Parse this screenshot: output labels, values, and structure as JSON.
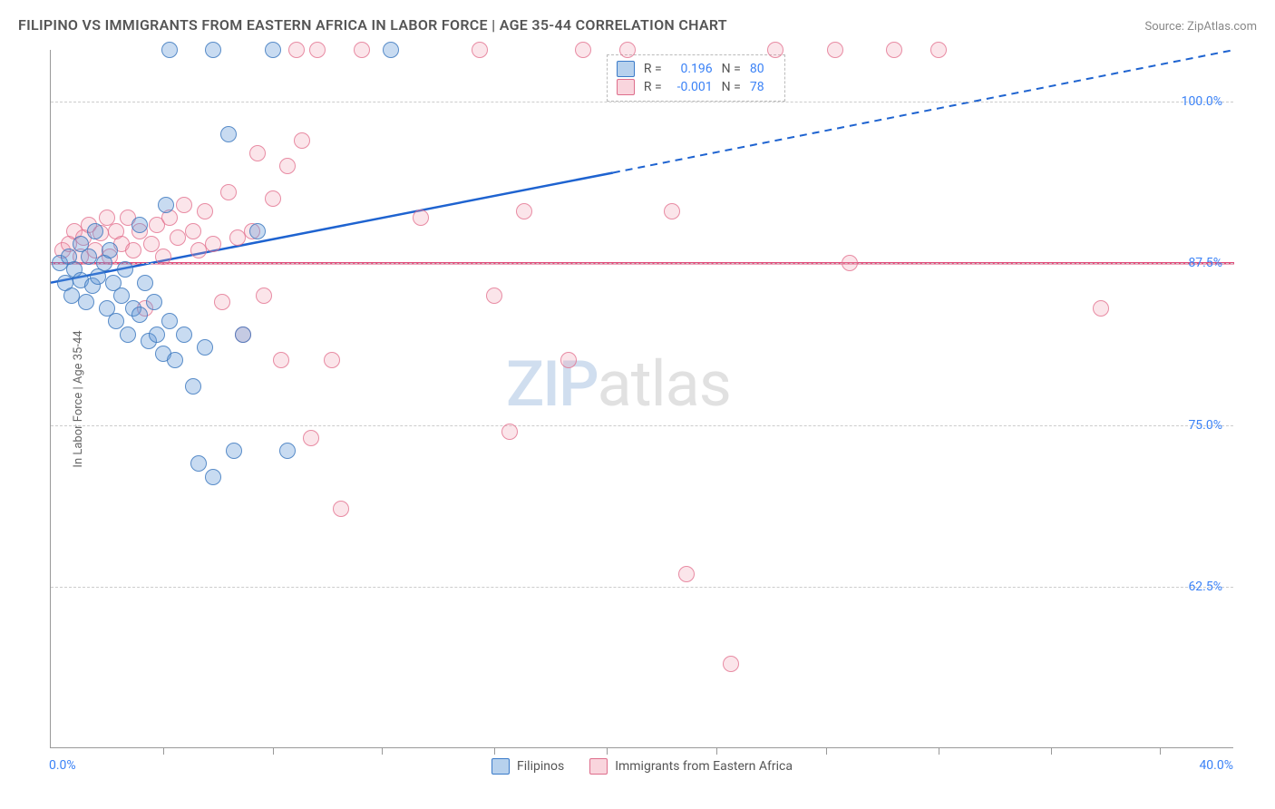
{
  "title": "FILIPINO VS IMMIGRANTS FROM EASTERN AFRICA IN LABOR FORCE | AGE 35-44 CORRELATION CHART",
  "source": "Source: ZipAtlas.com",
  "chart": {
    "type": "scatter",
    "y_axis_title": "In Labor Force | Age 35-44",
    "x_min": 0.0,
    "x_max": 40.0,
    "x_min_label": "0.0%",
    "x_max_label": "40.0%",
    "y_min": 50.0,
    "y_max": 104.0,
    "y_ticks": [
      62.5,
      75.0,
      87.5,
      100.0
    ],
    "y_tick_labels": [
      "62.5%",
      "75.0%",
      "87.5%",
      "100.0%"
    ],
    "x_tick_positions": [
      3.8,
      7.5,
      11.2,
      15.0,
      18.8,
      22.5,
      26.2,
      30.0,
      33.8,
      37.5
    ],
    "watermark_zip": "ZIP",
    "watermark_atlas": "atlas",
    "background_color": "#ffffff",
    "grid_color": "#cccccc"
  },
  "legend_top": {
    "rows": [
      {
        "r_label": "R =",
        "r_value": "0.196",
        "n_label": "N =",
        "n_value": "80"
      },
      {
        "r_label": "R =",
        "r_value": "-0.001",
        "n_label": "N =",
        "n_value": "78"
      }
    ]
  },
  "legend_bottom": {
    "series_a": "Filipinos",
    "series_b": "Immigrants from Eastern Africa"
  },
  "series": {
    "blue": {
      "color_fill": "rgba(96,153,214,0.35)",
      "color_stroke": "rgba(60,120,190,0.8)",
      "marker_size": 18,
      "trend_color": "#1e63d0",
      "trend_start": {
        "x": 0.0,
        "y": 86.0
      },
      "trend_solid_end": {
        "x": 19.0,
        "y": 94.5
      },
      "trend_dash_end": {
        "x": 40.0,
        "y": 104.0
      },
      "points": [
        {
          "x": 0.3,
          "y": 87.5
        },
        {
          "x": 0.5,
          "y": 86.0
        },
        {
          "x": 0.6,
          "y": 88.0
        },
        {
          "x": 0.7,
          "y": 85.0
        },
        {
          "x": 0.8,
          "y": 87.0
        },
        {
          "x": 1.0,
          "y": 86.2
        },
        {
          "x": 1.0,
          "y": 89.0
        },
        {
          "x": 1.2,
          "y": 84.5
        },
        {
          "x": 1.3,
          "y": 88.0
        },
        {
          "x": 1.4,
          "y": 85.8
        },
        {
          "x": 1.5,
          "y": 90.0
        },
        {
          "x": 1.6,
          "y": 86.5
        },
        {
          "x": 1.8,
          "y": 87.5
        },
        {
          "x": 1.9,
          "y": 84.0
        },
        {
          "x": 2.0,
          "y": 88.5
        },
        {
          "x": 2.1,
          "y": 86.0
        },
        {
          "x": 2.2,
          "y": 83.0
        },
        {
          "x": 2.4,
          "y": 85.0
        },
        {
          "x": 2.5,
          "y": 87.0
        },
        {
          "x": 2.6,
          "y": 82.0
        },
        {
          "x": 2.8,
          "y": 84.0
        },
        {
          "x": 3.0,
          "y": 83.5
        },
        {
          "x": 3.0,
          "y": 90.5
        },
        {
          "x": 3.2,
          "y": 86.0
        },
        {
          "x": 3.3,
          "y": 81.5
        },
        {
          "x": 3.5,
          "y": 84.5
        },
        {
          "x": 3.6,
          "y": 82.0
        },
        {
          "x": 3.8,
          "y": 80.5
        },
        {
          "x": 3.9,
          "y": 92.0
        },
        {
          "x": 4.0,
          "y": 83.0
        },
        {
          "x": 4.0,
          "y": 104.0
        },
        {
          "x": 4.2,
          "y": 80.0
        },
        {
          "x": 4.5,
          "y": 82.0
        },
        {
          "x": 4.8,
          "y": 78.0
        },
        {
          "x": 5.0,
          "y": 72.0
        },
        {
          "x": 5.2,
          "y": 81.0
        },
        {
          "x": 5.5,
          "y": 71.0
        },
        {
          "x": 5.5,
          "y": 104.0
        },
        {
          "x": 6.0,
          "y": 97.5
        },
        {
          "x": 6.2,
          "y": 73.0
        },
        {
          "x": 6.5,
          "y": 82.0
        },
        {
          "x": 7.0,
          "y": 90.0
        },
        {
          "x": 7.5,
          "y": 104.0
        },
        {
          "x": 8.0,
          "y": 73.0
        },
        {
          "x": 11.5,
          "y": 104.0
        }
      ]
    },
    "pink": {
      "color_fill": "rgba(240,150,170,0.25)",
      "color_stroke": "rgba(225,110,140,0.75)",
      "marker_size": 18,
      "trend_color": "#e14b7a",
      "trend_y": 87.5,
      "points": [
        {
          "x": 0.4,
          "y": 88.5
        },
        {
          "x": 0.6,
          "y": 89.0
        },
        {
          "x": 0.8,
          "y": 90.0
        },
        {
          "x": 1.0,
          "y": 88.0
        },
        {
          "x": 1.1,
          "y": 89.5
        },
        {
          "x": 1.3,
          "y": 90.5
        },
        {
          "x": 1.5,
          "y": 88.5
        },
        {
          "x": 1.7,
          "y": 89.8
        },
        {
          "x": 1.9,
          "y": 91.0
        },
        {
          "x": 2.0,
          "y": 88.0
        },
        {
          "x": 2.2,
          "y": 90.0
        },
        {
          "x": 2.4,
          "y": 89.0
        },
        {
          "x": 2.6,
          "y": 91.0
        },
        {
          "x": 2.8,
          "y": 88.5
        },
        {
          "x": 3.0,
          "y": 90.0
        },
        {
          "x": 3.2,
          "y": 84.0
        },
        {
          "x": 3.4,
          "y": 89.0
        },
        {
          "x": 3.6,
          "y": 90.5
        },
        {
          "x": 3.8,
          "y": 88.0
        },
        {
          "x": 4.0,
          "y": 91.0
        },
        {
          "x": 4.3,
          "y": 89.5
        },
        {
          "x": 4.5,
          "y": 92.0
        },
        {
          "x": 4.8,
          "y": 90.0
        },
        {
          "x": 5.0,
          "y": 88.5
        },
        {
          "x": 5.2,
          "y": 91.5
        },
        {
          "x": 5.5,
          "y": 89.0
        },
        {
          "x": 5.8,
          "y": 84.5
        },
        {
          "x": 6.0,
          "y": 93.0
        },
        {
          "x": 6.3,
          "y": 89.5
        },
        {
          "x": 6.5,
          "y": 82.0
        },
        {
          "x": 6.8,
          "y": 90.0
        },
        {
          "x": 7.0,
          "y": 96.0
        },
        {
          "x": 7.2,
          "y": 85.0
        },
        {
          "x": 7.5,
          "y": 92.5
        },
        {
          "x": 7.8,
          "y": 80.0
        },
        {
          "x": 8.0,
          "y": 95.0
        },
        {
          "x": 8.3,
          "y": 104.0
        },
        {
          "x": 8.5,
          "y": 97.0
        },
        {
          "x": 8.8,
          "y": 74.0
        },
        {
          "x": 9.0,
          "y": 104.0
        },
        {
          "x": 9.5,
          "y": 80.0
        },
        {
          "x": 9.8,
          "y": 68.5
        },
        {
          "x": 10.5,
          "y": 104.0
        },
        {
          "x": 12.5,
          "y": 91.0
        },
        {
          "x": 14.5,
          "y": 104.0
        },
        {
          "x": 15.0,
          "y": 85.0
        },
        {
          "x": 15.5,
          "y": 74.5
        },
        {
          "x": 16.0,
          "y": 91.5
        },
        {
          "x": 17.5,
          "y": 80.0
        },
        {
          "x": 18.0,
          "y": 104.0
        },
        {
          "x": 19.5,
          "y": 104.0
        },
        {
          "x": 21.0,
          "y": 91.5
        },
        {
          "x": 21.5,
          "y": 63.5
        },
        {
          "x": 23.0,
          "y": 56.5
        },
        {
          "x": 24.5,
          "y": 104.0
        },
        {
          "x": 26.5,
          "y": 104.0
        },
        {
          "x": 27.0,
          "y": 87.5
        },
        {
          "x": 28.5,
          "y": 104.0
        },
        {
          "x": 30.0,
          "y": 104.0
        },
        {
          "x": 35.5,
          "y": 84.0
        }
      ]
    }
  }
}
